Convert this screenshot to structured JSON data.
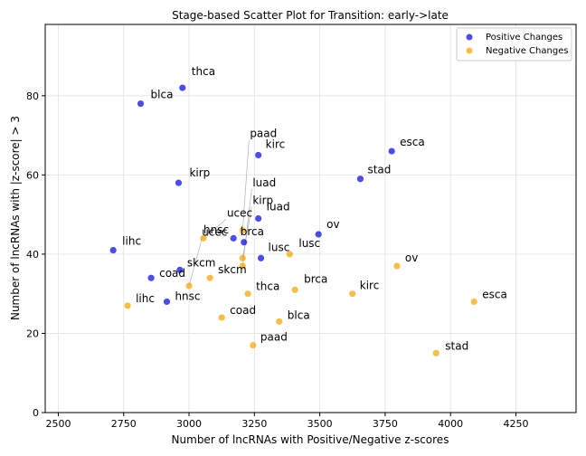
{
  "chart_data": {
    "type": "scatter",
    "title": "Stage-based Scatter Plot for Transition: early->late",
    "xlabel": "Number of lncRNAs with Positive/Negative z-scores",
    "ylabel": "Number of lncRNAs with |z-score| > 3",
    "xlim": [
      2450,
      4480
    ],
    "ylim": [
      0,
      98
    ],
    "xticks": [
      2500,
      2750,
      3000,
      3250,
      3500,
      3750,
      4000,
      4250
    ],
    "yticks": [
      0,
      20,
      40,
      60,
      80
    ],
    "grid": true,
    "legend_position": "top-right",
    "series": [
      {
        "name": "Positive Changes",
        "color": "#0000dd",
        "points": [
          {
            "label": "thca",
            "x": 2975,
            "y": 82
          },
          {
            "label": "blca",
            "x": 2815,
            "y": 78
          },
          {
            "label": "kirc",
            "x": 3265,
            "y": 65
          },
          {
            "label": "esca",
            "x": 3775,
            "y": 66
          },
          {
            "label": "kirp",
            "x": 2960,
            "y": 58
          },
          {
            "label": "stad",
            "x": 3655,
            "y": 59
          },
          {
            "label": "luad",
            "x": 3265,
            "y": 49
          },
          {
            "label": "ov",
            "x": 3495,
            "y": 45
          },
          {
            "label": "ucec",
            "x": 3170,
            "y": 44
          },
          {
            "label": "brca",
            "x": 3210,
            "y": 43
          },
          {
            "label": "lihc",
            "x": 2710,
            "y": 41
          },
          {
            "label": "lusc",
            "x": 3275,
            "y": 39
          },
          {
            "label": "skcm",
            "x": 2965,
            "y": 36
          },
          {
            "label": "coad",
            "x": 2855,
            "y": 34
          },
          {
            "label": "hnsc",
            "x": 2915,
            "y": 28
          }
        ]
      },
      {
        "name": "Negative Changes",
        "color": "#f5a300",
        "points": [
          {
            "label": "esca",
            "x": 4090,
            "y": 28
          },
          {
            "label": "stad",
            "x": 3945,
            "y": 15
          },
          {
            "label": "ov",
            "x": 3795,
            "y": 37
          },
          {
            "label": "kirc",
            "x": 3625,
            "y": 30
          },
          {
            "label": "brca",
            "x": 3405,
            "y": 31
          },
          {
            "label": "lusc",
            "x": 3385,
            "y": 40
          },
          {
            "label": "blca",
            "x": 3345,
            "y": 23
          },
          {
            "label": "thca",
            "x": 3225,
            "y": 30
          },
          {
            "label": "paad",
            "x": 3245,
            "y": 17
          },
          {
            "label": "coad",
            "x": 3125,
            "y": 24
          },
          {
            "label": "skcm",
            "x": 3080,
            "y": 34
          },
          {
            "label": "ucec",
            "x": 3055,
            "y": 44
          },
          {
            "label": "hnsc",
            "x": 3000,
            "y": 32
          },
          {
            "label": "lihc",
            "x": 2765,
            "y": 27
          },
          {
            "label": "kirp",
            "x": 3205,
            "y": 39
          },
          {
            "label": "luad",
            "x": 3205,
            "y": 37
          },
          {
            "label": "paad",
            "x": 3205,
            "y": 46
          }
        ]
      }
    ]
  }
}
